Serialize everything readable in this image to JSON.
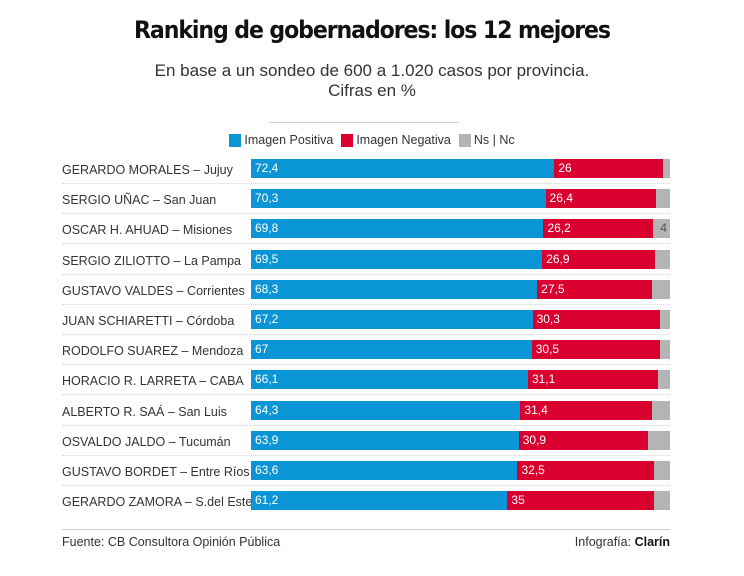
{
  "chart_data": {
    "type": "bar",
    "orientation": "horizontal",
    "stacked": true,
    "title": "Ranking de gobernadores: los 12 mejores",
    "subtitle_line1": "En base a un sondeo de 600 a 1.020 casos por provincia.",
    "subtitle_line2": "Cifras en %",
    "xlim": [
      0,
      100
    ],
    "legend_position": "top-center",
    "categories": [
      "GERARDO MORALES – Jujuy",
      "SERGIO UÑAC – San Juan",
      "OSCAR H. AHUAD – Misiones",
      "SERGIO ZILIOTTO – La Pampa",
      "GUSTAVO VALDES – Corrientes",
      "JUAN SCHIARETTI – Córdoba",
      "RODOLFO SUAREZ – Mendoza",
      "HORACIO R. LARRETA – CABA",
      "ALBERTO R. SAÁ – San Luis",
      "OSVALDO JALDO – Tucumán",
      "GUSTAVO BORDET – Entre Ríos",
      "GERARDO ZAMORA – S.del Estero"
    ],
    "series": [
      {
        "name": "Imagen Positiva",
        "color": "#0a96d6",
        "values": [
          72.4,
          70.3,
          69.8,
          69.5,
          68.3,
          67.2,
          67,
          66.1,
          64.3,
          63.9,
          63.6,
          61.2
        ],
        "labels": [
          "72,4",
          "70,3",
          "69,8",
          "69,5",
          "68,3",
          "67,2",
          "67",
          "66,1",
          "64,3",
          "63,9",
          "63,6",
          "61,2"
        ]
      },
      {
        "name": "Imagen Negativa",
        "color": "#d9002f",
        "values": [
          26,
          26.4,
          26.2,
          26.9,
          27.5,
          30.3,
          30.5,
          31.1,
          31.4,
          30.9,
          32.5,
          35
        ],
        "labels": [
          "26",
          "26,4",
          "26,2",
          "26,9",
          "27,5",
          "30,3",
          "30,5",
          "31,1",
          "31,4",
          "30,9",
          "32,5",
          "35"
        ]
      },
      {
        "name": "Ns | Nc",
        "color": "#b4b4b4",
        "values": [
          1.6,
          3.3,
          4,
          3.6,
          4.2,
          2.5,
          2.5,
          2.8,
          4.3,
          5.2,
          3.9,
          3.8
        ],
        "labels": [
          "",
          "",
          "4",
          "",
          "",
          "",
          "",
          "",
          "",
          "",
          "",
          ""
        ]
      }
    ]
  },
  "footer": {
    "source": "Fuente: CB Consultora Opinión Pública",
    "credit_prefix": "Infografía: ",
    "credit_brand": "Clarín"
  }
}
